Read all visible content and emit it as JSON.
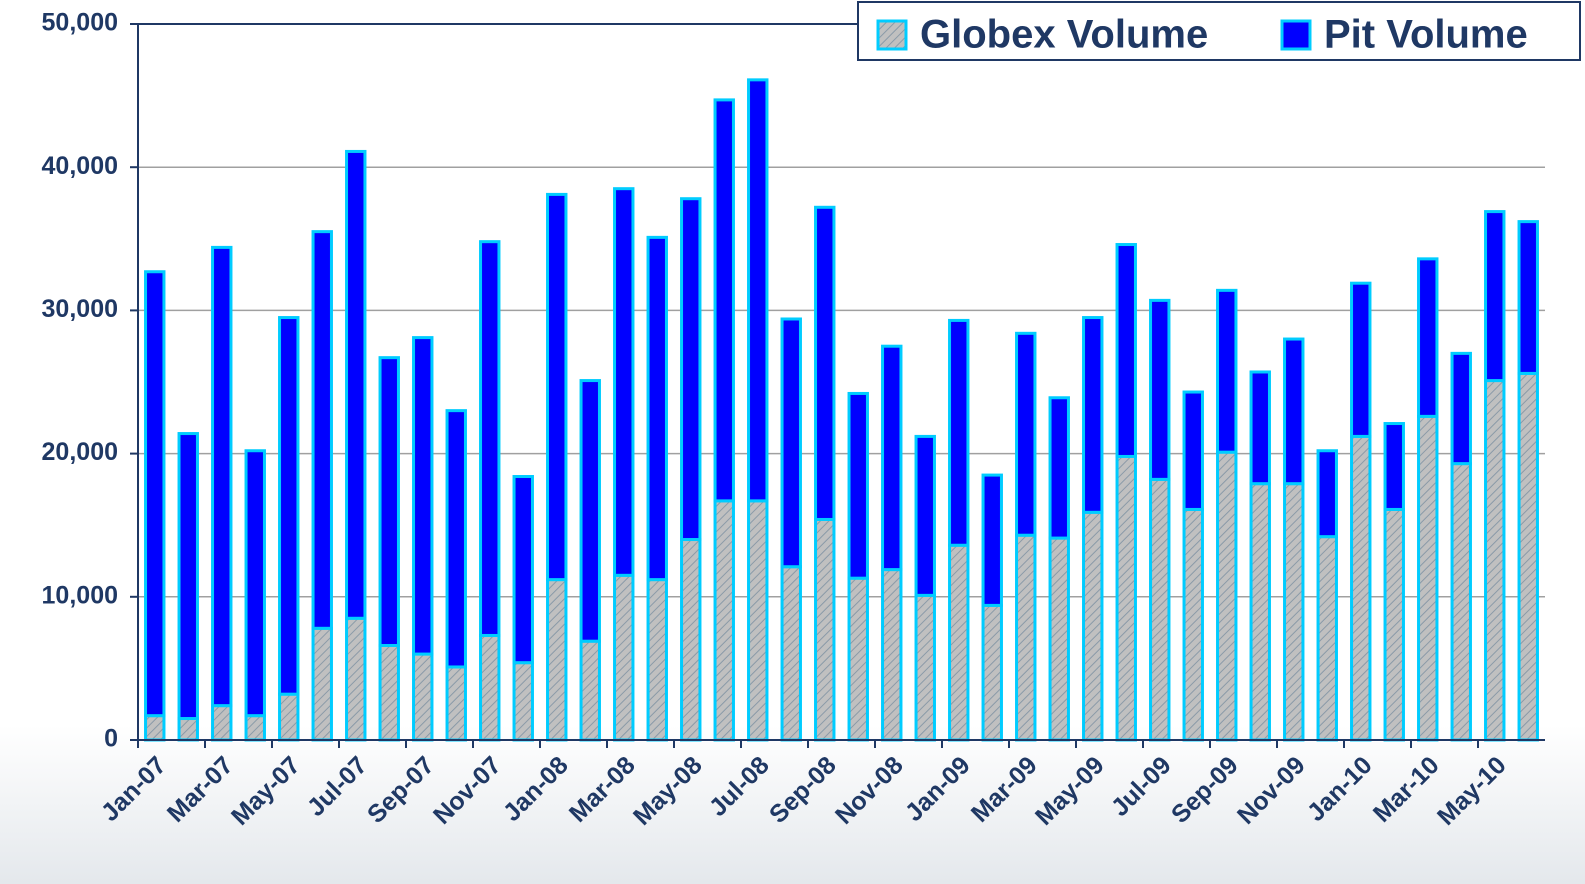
{
  "chart_data": {
    "type": "stacked_bar",
    "categories": [
      "Jan-07",
      null,
      "Mar-07",
      null,
      "May-07",
      null,
      "Jul-07",
      null,
      "Sep-07",
      null,
      "Nov-07",
      null,
      "Jan-08",
      null,
      "Mar-08",
      null,
      "May-08",
      null,
      "Jul-08",
      null,
      "Sep-08",
      null,
      "Nov-08",
      null,
      "Jan-09",
      null,
      "Mar-09",
      null,
      "May-09",
      null,
      "Jul-09",
      null,
      "Sep-09",
      null,
      "Nov-09",
      null,
      "Jan-10",
      null,
      "Mar-10",
      null,
      "May-10",
      null
    ],
    "series": [
      {
        "name": "Globex Volume",
        "color": "#c0c0c0",
        "values": [
          1700,
          1500,
          2400,
          1700,
          3200,
          7800,
          8500,
          6600,
          6000,
          5100,
          7300,
          5400,
          11200,
          6900,
          11500,
          11200,
          14000,
          16700,
          16700,
          12100,
          15400,
          11300,
          11900,
          10100,
          13600,
          9400,
          14300,
          14100,
          15900,
          19800,
          18200,
          16100,
          20100,
          17900,
          17900,
          14200,
          21200,
          16100,
          22600,
          19300,
          25100,
          25600
        ]
      },
      {
        "name": "Pit Volume",
        "color": "#0000ff",
        "values": [
          31000,
          19900,
          32000,
          18500,
          26300,
          27700,
          32600,
          20100,
          22100,
          17900,
          27500,
          13000,
          26900,
          18200,
          27000,
          23900,
          23800,
          28000,
          29400,
          17300,
          21800,
          12900,
          15600,
          11100,
          15700,
          9100,
          14100,
          9800,
          13600,
          14800,
          12500,
          8200,
          11300,
          7800,
          10100,
          6000,
          10700,
          6000,
          11000,
          7700,
          11800,
          10600
        ]
      }
    ],
    "ylim": [
      0,
      50000
    ],
    "yticks": [
      0,
      {
        "value": 10000,
        "label": "10,000"
      },
      {
        "value": 20000,
        "label": "20,000"
      },
      {
        "value": 30000,
        "label": "30,000"
      },
      {
        "value": 40000,
        "label": "40,000"
      },
      {
        "value": 50000,
        "label": "50,000"
      }
    ],
    "grid": true,
    "legend": "top-right",
    "bar_edge_color": "#00ccff"
  }
}
